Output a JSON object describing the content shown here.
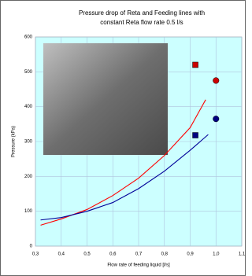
{
  "chart_data": {
    "type": "line",
    "title": [
      "Pressure drop of Reta and Feeding lines with",
      "constant Reta flow rate 0.5 l/s"
    ],
    "x_label": "Flow rate of feeding liquid [l/s]",
    "y_label": "Pressure (kPa)",
    "xlim": [
      0.3,
      1.1
    ],
    "ylim": [
      0,
      600
    ],
    "xticks": [
      {
        "value": 0.3,
        "label": "0,3"
      },
      {
        "value": 0.4,
        "label": "0,4"
      },
      {
        "value": 0.5,
        "label": "0,5"
      },
      {
        "value": 0.6,
        "label": "0,6"
      },
      {
        "value": 0.7,
        "label": "0,7"
      },
      {
        "value": 0.8,
        "label": "0,8"
      },
      {
        "value": 0.9,
        "label": "0,9"
      },
      {
        "value": 1.0,
        "label": "1,0"
      },
      {
        "value": 1.1,
        "label": "1,1"
      }
    ],
    "yticks": [
      0,
      100,
      200,
      300,
      400,
      500,
      600
    ],
    "grid": true,
    "series": [
      {
        "color": "#ff0000",
        "x": [
          0.32,
          0.4,
          0.5,
          0.6,
          0.7,
          0.8,
          0.9,
          0.96
        ],
        "values": [
          60,
          78,
          105,
          145,
          195,
          260,
          340,
          420
        ]
      },
      {
        "color": "#000099",
        "x": [
          0.32,
          0.4,
          0.5,
          0.6,
          0.7,
          0.8,
          0.9,
          0.97
        ],
        "values": [
          75,
          82,
          100,
          125,
          165,
          215,
          275,
          320
        ]
      },
      {
        "color": "#cc0000",
        "marker": "square",
        "x": [
          0.92
        ],
        "values": [
          520
        ]
      },
      {
        "color": "#cc0000",
        "marker": "circle",
        "x": [
          1.0
        ],
        "values": [
          475
        ]
      },
      {
        "color": "#000080",
        "marker": "circle",
        "x": [
          1.0
        ],
        "values": [
          365
        ]
      },
      {
        "color": "#000080",
        "marker": "square",
        "x": [
          0.92
        ],
        "values": [
          318
        ]
      }
    ]
  }
}
